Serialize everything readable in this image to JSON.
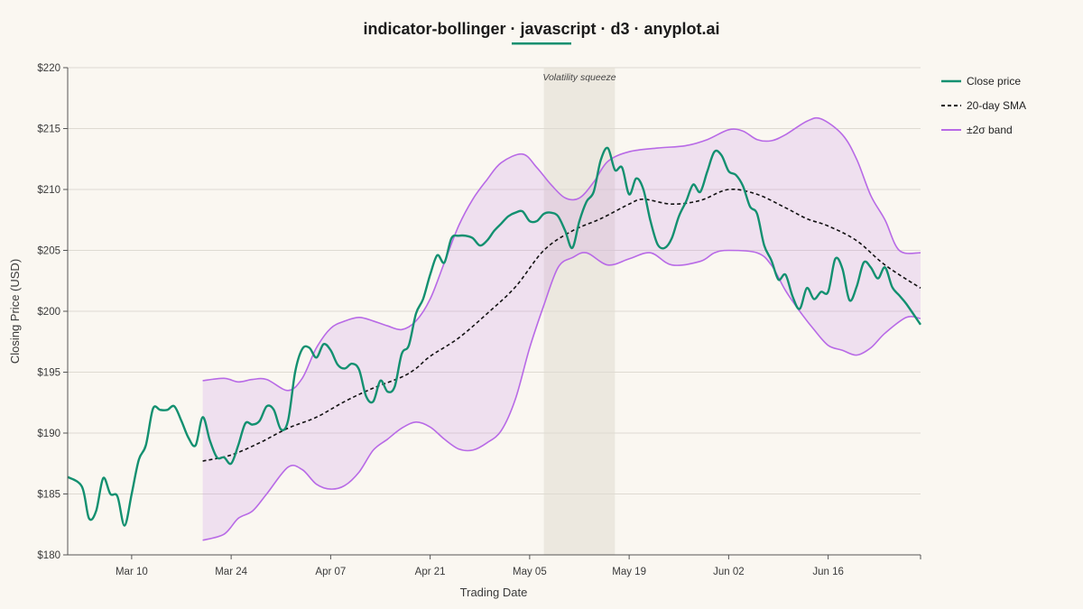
{
  "chart_data": {
    "type": "line",
    "title": "indicator-bollinger · javascript · d3 · anyplot.ai",
    "xlabel": "Trading Date",
    "ylabel": "Closing Price (USD)",
    "ylim": [
      180,
      220
    ],
    "yticks": [
      "$180",
      "$185",
      "$190",
      "$195",
      "$200",
      "$205",
      "$210",
      "$215",
      "$220"
    ],
    "xticks": [
      {
        "date": "2025-03-10",
        "label": "Mar 10"
      },
      {
        "date": "2025-03-24",
        "label": "Mar 24"
      },
      {
        "date": "2025-04-07",
        "label": "Apr 07"
      },
      {
        "date": "2025-04-21",
        "label": "Apr 21"
      },
      {
        "date": "2025-05-05",
        "label": "May 05"
      },
      {
        "date": "2025-05-19",
        "label": "May 19"
      },
      {
        "date": "2025-06-02",
        "label": "Jun 02"
      },
      {
        "date": "2025-06-16",
        "label": "Jun 16"
      }
    ],
    "x_start": "2025-03-01",
    "x_end": "2025-06-29",
    "grid": true,
    "legend_position": "top-right",
    "annotation": {
      "label": "Volatility squeeze",
      "x_start": "2025-05-07",
      "x_end": "2025-05-17"
    },
    "series": [
      {
        "name": "Close price",
        "color": "#139070",
        "style": "solid",
        "points": [
          [
            "2025-03-01",
            186.4
          ],
          [
            "2025-03-03",
            185.6
          ],
          [
            "2025-03-04",
            183.0
          ],
          [
            "2025-03-05",
            183.6
          ],
          [
            "2025-03-06",
            186.3
          ],
          [
            "2025-03-07",
            185.0
          ],
          [
            "2025-03-08",
            184.8
          ],
          [
            "2025-03-09",
            182.4
          ],
          [
            "2025-03-10",
            185.0
          ],
          [
            "2025-03-11",
            187.8
          ],
          [
            "2025-03-12",
            189.0
          ],
          [
            "2025-03-13",
            192.0
          ],
          [
            "2025-03-14",
            191.9
          ],
          [
            "2025-03-15",
            191.9
          ],
          [
            "2025-03-16",
            192.2
          ],
          [
            "2025-03-17",
            191.0
          ],
          [
            "2025-03-18",
            189.6
          ],
          [
            "2025-03-19",
            189.0
          ],
          [
            "2025-03-20",
            191.3
          ],
          [
            "2025-03-21",
            189.4
          ],
          [
            "2025-03-22",
            188.0
          ],
          [
            "2025-03-23",
            188.0
          ],
          [
            "2025-03-24",
            187.5
          ],
          [
            "2025-03-25",
            189.0
          ],
          [
            "2025-03-26",
            190.8
          ],
          [
            "2025-03-27",
            190.7
          ],
          [
            "2025-03-28",
            191.0
          ],
          [
            "2025-03-29",
            192.2
          ],
          [
            "2025-03-30",
            191.9
          ],
          [
            "2025-03-31",
            190.3
          ],
          [
            "2025-04-01",
            191.0
          ],
          [
            "2025-04-02",
            195.0
          ],
          [
            "2025-04-03",
            196.9
          ],
          [
            "2025-04-04",
            197.0
          ],
          [
            "2025-04-05",
            196.2
          ],
          [
            "2025-04-06",
            197.3
          ],
          [
            "2025-04-07",
            196.8
          ],
          [
            "2025-04-08",
            195.6
          ],
          [
            "2025-04-09",
            195.3
          ],
          [
            "2025-04-10",
            195.7
          ],
          [
            "2025-04-11",
            195.2
          ],
          [
            "2025-04-12",
            193.0
          ],
          [
            "2025-04-13",
            192.6
          ],
          [
            "2025-04-14",
            194.3
          ],
          [
            "2025-04-15",
            193.4
          ],
          [
            "2025-04-16",
            193.8
          ],
          [
            "2025-04-17",
            196.5
          ],
          [
            "2025-04-18",
            197.2
          ],
          [
            "2025-04-19",
            199.8
          ],
          [
            "2025-04-20",
            201.0
          ],
          [
            "2025-04-21",
            203.0
          ],
          [
            "2025-04-22",
            204.6
          ],
          [
            "2025-04-23",
            204.0
          ],
          [
            "2025-04-24",
            206.0
          ],
          [
            "2025-04-25",
            206.2
          ],
          [
            "2025-04-26",
            206.2
          ],
          [
            "2025-04-27",
            206.0
          ],
          [
            "2025-04-28",
            205.4
          ],
          [
            "2025-04-29",
            205.8
          ],
          [
            "2025-04-30",
            206.6
          ],
          [
            "2025-05-01",
            207.2
          ],
          [
            "2025-05-02",
            207.8
          ],
          [
            "2025-05-03",
            208.1
          ],
          [
            "2025-05-04",
            208.2
          ],
          [
            "2025-05-05",
            207.4
          ],
          [
            "2025-05-06",
            207.4
          ],
          [
            "2025-05-07",
            208.0
          ],
          [
            "2025-05-08",
            208.1
          ],
          [
            "2025-05-09",
            207.8
          ],
          [
            "2025-05-10",
            206.6
          ],
          [
            "2025-05-11",
            205.2
          ],
          [
            "2025-05-12",
            207.4
          ],
          [
            "2025-05-13",
            209.0
          ],
          [
            "2025-05-14",
            209.8
          ],
          [
            "2025-05-15",
            212.4
          ],
          [
            "2025-05-16",
            213.4
          ],
          [
            "2025-05-17",
            211.6
          ],
          [
            "2025-05-18",
            211.8
          ],
          [
            "2025-05-19",
            209.6
          ],
          [
            "2025-05-20",
            210.9
          ],
          [
            "2025-05-21",
            210.0
          ],
          [
            "2025-05-22",
            207.4
          ],
          [
            "2025-05-23",
            205.5
          ],
          [
            "2025-05-24",
            205.2
          ],
          [
            "2025-05-25",
            206.0
          ],
          [
            "2025-05-26",
            207.8
          ],
          [
            "2025-05-27",
            209.0
          ],
          [
            "2025-05-28",
            210.4
          ],
          [
            "2025-05-29",
            209.8
          ],
          [
            "2025-05-30",
            211.5
          ],
          [
            "2025-05-31",
            213.1
          ],
          [
            "2025-06-01",
            212.8
          ],
          [
            "2025-06-02",
            211.5
          ],
          [
            "2025-06-03",
            211.2
          ],
          [
            "2025-06-04",
            210.3
          ],
          [
            "2025-06-05",
            208.6
          ],
          [
            "2025-06-06",
            208.0
          ],
          [
            "2025-06-07",
            205.4
          ],
          [
            "2025-06-08",
            204.2
          ],
          [
            "2025-06-09",
            202.6
          ],
          [
            "2025-06-10",
            203.0
          ],
          [
            "2025-06-11",
            201.2
          ],
          [
            "2025-06-12",
            200.2
          ],
          [
            "2025-06-13",
            201.9
          ],
          [
            "2025-06-14",
            201.0
          ],
          [
            "2025-06-15",
            201.6
          ],
          [
            "2025-06-16",
            201.6
          ],
          [
            "2025-06-17",
            204.3
          ],
          [
            "2025-06-18",
            203.5
          ],
          [
            "2025-06-19",
            200.9
          ],
          [
            "2025-06-20",
            202.0
          ],
          [
            "2025-06-21",
            204.0
          ],
          [
            "2025-06-22",
            203.6
          ],
          [
            "2025-06-23",
            202.7
          ],
          [
            "2025-06-24",
            203.6
          ],
          [
            "2025-06-25",
            202.0
          ],
          [
            "2025-06-26",
            201.3
          ],
          [
            "2025-06-27",
            200.6
          ],
          [
            "2025-06-29",
            198.9
          ]
        ]
      },
      {
        "name": "20-day SMA",
        "color": "#111111",
        "style": "dashed",
        "points": [
          [
            "2025-03-20",
            187.7
          ],
          [
            "2025-03-24",
            188.2
          ],
          [
            "2025-03-28",
            189.2
          ],
          [
            "2025-04-01",
            190.4
          ],
          [
            "2025-04-05",
            191.3
          ],
          [
            "2025-04-09",
            192.6
          ],
          [
            "2025-04-13",
            193.7
          ],
          [
            "2025-04-17",
            194.6
          ],
          [
            "2025-04-19",
            195.3
          ],
          [
            "2025-04-21",
            196.3
          ],
          [
            "2025-04-25",
            197.8
          ],
          [
            "2025-04-29",
            199.8
          ],
          [
            "2025-05-03",
            202.0
          ],
          [
            "2025-05-07",
            205.0
          ],
          [
            "2025-05-11",
            206.6
          ],
          [
            "2025-05-15",
            207.6
          ],
          [
            "2025-05-19",
            208.8
          ],
          [
            "2025-05-21",
            209.2
          ],
          [
            "2025-05-25",
            208.8
          ],
          [
            "2025-05-29",
            209.1
          ],
          [
            "2025-06-02",
            210.0
          ],
          [
            "2025-06-06",
            209.6
          ],
          [
            "2025-06-10",
            208.5
          ],
          [
            "2025-06-13",
            207.6
          ],
          [
            "2025-06-16",
            207.0
          ],
          [
            "2025-06-20",
            205.8
          ],
          [
            "2025-06-24",
            203.8
          ],
          [
            "2025-06-29",
            201.9
          ]
        ]
      },
      {
        "name": "±2σ band",
        "color": "#b86ae6",
        "style": "band",
        "upper": [
          [
            "2025-03-20",
            194.3
          ],
          [
            "2025-03-23",
            194.5
          ],
          [
            "2025-03-25",
            194.2
          ],
          [
            "2025-03-27",
            194.4
          ],
          [
            "2025-03-29",
            194.4
          ],
          [
            "2025-04-01",
            193.5
          ],
          [
            "2025-04-03",
            194.5
          ],
          [
            "2025-04-05",
            197.0
          ],
          [
            "2025-04-07",
            198.6
          ],
          [
            "2025-04-09",
            199.2
          ],
          [
            "2025-04-11",
            199.5
          ],
          [
            "2025-04-13",
            199.2
          ],
          [
            "2025-04-15",
            198.8
          ],
          [
            "2025-04-17",
            198.5
          ],
          [
            "2025-04-19",
            199.2
          ],
          [
            "2025-04-21",
            201.0
          ],
          [
            "2025-04-23",
            204.0
          ],
          [
            "2025-04-25",
            207.0
          ],
          [
            "2025-04-27",
            209.2
          ],
          [
            "2025-04-29",
            210.8
          ],
          [
            "2025-05-01",
            212.2
          ],
          [
            "2025-05-04",
            212.9
          ],
          [
            "2025-05-06",
            211.8
          ],
          [
            "2025-05-08",
            210.4
          ],
          [
            "2025-05-10",
            209.3
          ],
          [
            "2025-05-12",
            209.3
          ],
          [
            "2025-05-14",
            210.6
          ],
          [
            "2025-05-16",
            212.3
          ],
          [
            "2025-05-19",
            213.1
          ],
          [
            "2025-05-23",
            213.4
          ],
          [
            "2025-05-27",
            213.6
          ],
          [
            "2025-05-30",
            214.1
          ],
          [
            "2025-06-02",
            214.9
          ],
          [
            "2025-06-04",
            214.8
          ],
          [
            "2025-06-06",
            214.1
          ],
          [
            "2025-06-08",
            214.0
          ],
          [
            "2025-06-10",
            214.5
          ],
          [
            "2025-06-13",
            215.6
          ],
          [
            "2025-06-15",
            215.8
          ],
          [
            "2025-06-18",
            214.5
          ],
          [
            "2025-06-20",
            212.5
          ],
          [
            "2025-06-22",
            209.5
          ],
          [
            "2025-06-24",
            207.5
          ],
          [
            "2025-06-26",
            205.0
          ],
          [
            "2025-06-29",
            204.8
          ]
        ],
        "lower": [
          [
            "2025-03-20",
            181.2
          ],
          [
            "2025-03-23",
            181.7
          ],
          [
            "2025-03-25",
            183.0
          ],
          [
            "2025-03-27",
            183.6
          ],
          [
            "2025-03-29",
            185.0
          ],
          [
            "2025-04-01",
            187.2
          ],
          [
            "2025-04-03",
            187.0
          ],
          [
            "2025-04-05",
            185.8
          ],
          [
            "2025-04-07",
            185.4
          ],
          [
            "2025-04-09",
            185.7
          ],
          [
            "2025-04-11",
            186.8
          ],
          [
            "2025-04-13",
            188.6
          ],
          [
            "2025-04-15",
            189.5
          ],
          [
            "2025-04-17",
            190.4
          ],
          [
            "2025-04-19",
            190.9
          ],
          [
            "2025-04-21",
            190.5
          ],
          [
            "2025-04-23",
            189.5
          ],
          [
            "2025-04-25",
            188.7
          ],
          [
            "2025-04-27",
            188.6
          ],
          [
            "2025-04-29",
            189.2
          ],
          [
            "2025-05-01",
            190.2
          ],
          [
            "2025-05-03",
            192.8
          ],
          [
            "2025-05-05",
            197.0
          ],
          [
            "2025-05-07",
            200.5
          ],
          [
            "2025-05-09",
            203.6
          ],
          [
            "2025-05-11",
            204.4
          ],
          [
            "2025-05-13",
            204.8
          ],
          [
            "2025-05-16",
            203.8
          ],
          [
            "2025-05-19",
            204.3
          ],
          [
            "2025-05-22",
            204.8
          ],
          [
            "2025-05-25",
            203.8
          ],
          [
            "2025-05-29",
            204.1
          ],
          [
            "2025-05-31",
            204.8
          ],
          [
            "2025-06-02",
            205.0
          ],
          [
            "2025-06-06",
            204.8
          ],
          [
            "2025-06-08",
            203.8
          ],
          [
            "2025-06-10",
            201.7
          ],
          [
            "2025-06-12",
            200.0
          ],
          [
            "2025-06-14",
            198.5
          ],
          [
            "2025-06-16",
            197.2
          ],
          [
            "2025-06-18",
            196.8
          ],
          [
            "2025-06-20",
            196.4
          ],
          [
            "2025-06-22",
            197.0
          ],
          [
            "2025-06-24",
            198.2
          ],
          [
            "2025-06-27",
            199.5
          ],
          [
            "2025-06-29",
            199.4
          ]
        ]
      }
    ]
  }
}
